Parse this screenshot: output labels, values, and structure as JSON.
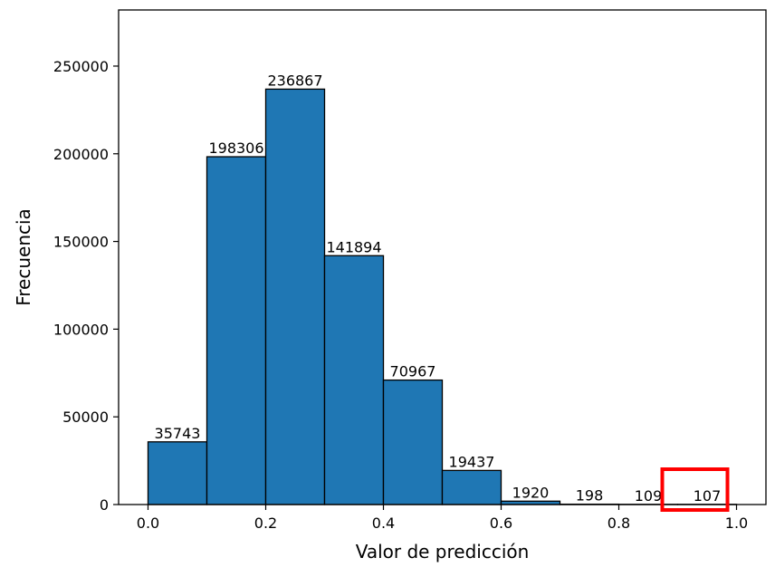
{
  "chart_data": {
    "type": "bar",
    "subtype": "histogram",
    "bins": [
      {
        "start": 0.0,
        "end": 0.1,
        "value": 35743,
        "label": "35743"
      },
      {
        "start": 0.1,
        "end": 0.2,
        "value": 198306,
        "label": "198306"
      },
      {
        "start": 0.2,
        "end": 0.3,
        "value": 236867,
        "label": "236867"
      },
      {
        "start": 0.3,
        "end": 0.4,
        "value": 141894,
        "label": "141894"
      },
      {
        "start": 0.4,
        "end": 0.5,
        "value": 70967,
        "label": "70967"
      },
      {
        "start": 0.5,
        "end": 0.6,
        "value": 19437,
        "label": "19437"
      },
      {
        "start": 0.6,
        "end": 0.7,
        "value": 1920,
        "label": "1920"
      },
      {
        "start": 0.7,
        "end": 0.8,
        "value": 198,
        "label": "198"
      },
      {
        "start": 0.8,
        "end": 0.9,
        "value": 109,
        "label": "109"
      },
      {
        "start": 0.9,
        "end": 1.0,
        "value": 107,
        "label": "107"
      }
    ],
    "xlabel": "Valor de predicción",
    "ylabel": "Frecuencia",
    "xlim": [
      -0.05,
      1.05
    ],
    "ylim": [
      0,
      282000
    ],
    "xticks": [
      {
        "value": 0.0,
        "label": "0.0"
      },
      {
        "value": 0.2,
        "label": "0.2"
      },
      {
        "value": 0.4,
        "label": "0.4"
      },
      {
        "value": 0.6,
        "label": "0.6"
      },
      {
        "value": 0.8,
        "label": "0.8"
      },
      {
        "value": 1.0,
        "label": "1.0"
      }
    ],
    "yticks": [
      {
        "value": 0,
        "label": "0"
      },
      {
        "value": 50000,
        "label": "50000"
      },
      {
        "value": 100000,
        "label": "100000"
      },
      {
        "value": 150000,
        "label": "150000"
      },
      {
        "value": 200000,
        "label": "200000"
      },
      {
        "value": 250000,
        "label": "250000"
      }
    ],
    "grid": false,
    "bar_color": "#1f77b4",
    "edge_color": "#000000",
    "highlight": {
      "bin_index": 9,
      "shape": "rectangle",
      "color": "#ff0000"
    }
  }
}
